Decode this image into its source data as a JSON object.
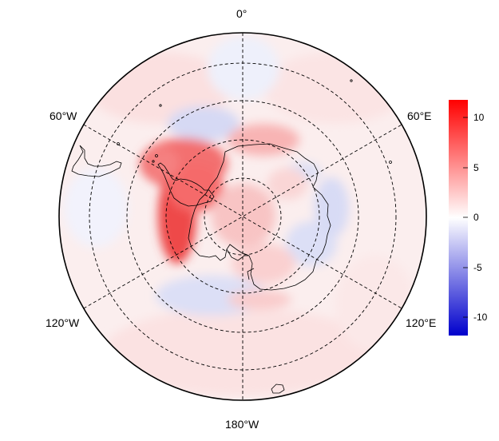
{
  "map": {
    "projection": "south-polar-stereographic",
    "longitude_labels": {
      "top": "0°",
      "upper_left": "60°W",
      "upper_right": "60°E",
      "lower_left": "120°W",
      "lower_right": "120°E",
      "bottom": "180°W"
    },
    "graticule": {
      "style": "dashed",
      "color": "#000000"
    }
  },
  "colorbar": {
    "ticks": [
      "10",
      "5",
      "0",
      "-5",
      "-10"
    ],
    "range": [
      -12,
      12
    ],
    "colors": {
      "max": "#ff0000",
      "mid": "#ffffff",
      "min": "#0000cc"
    }
  }
}
